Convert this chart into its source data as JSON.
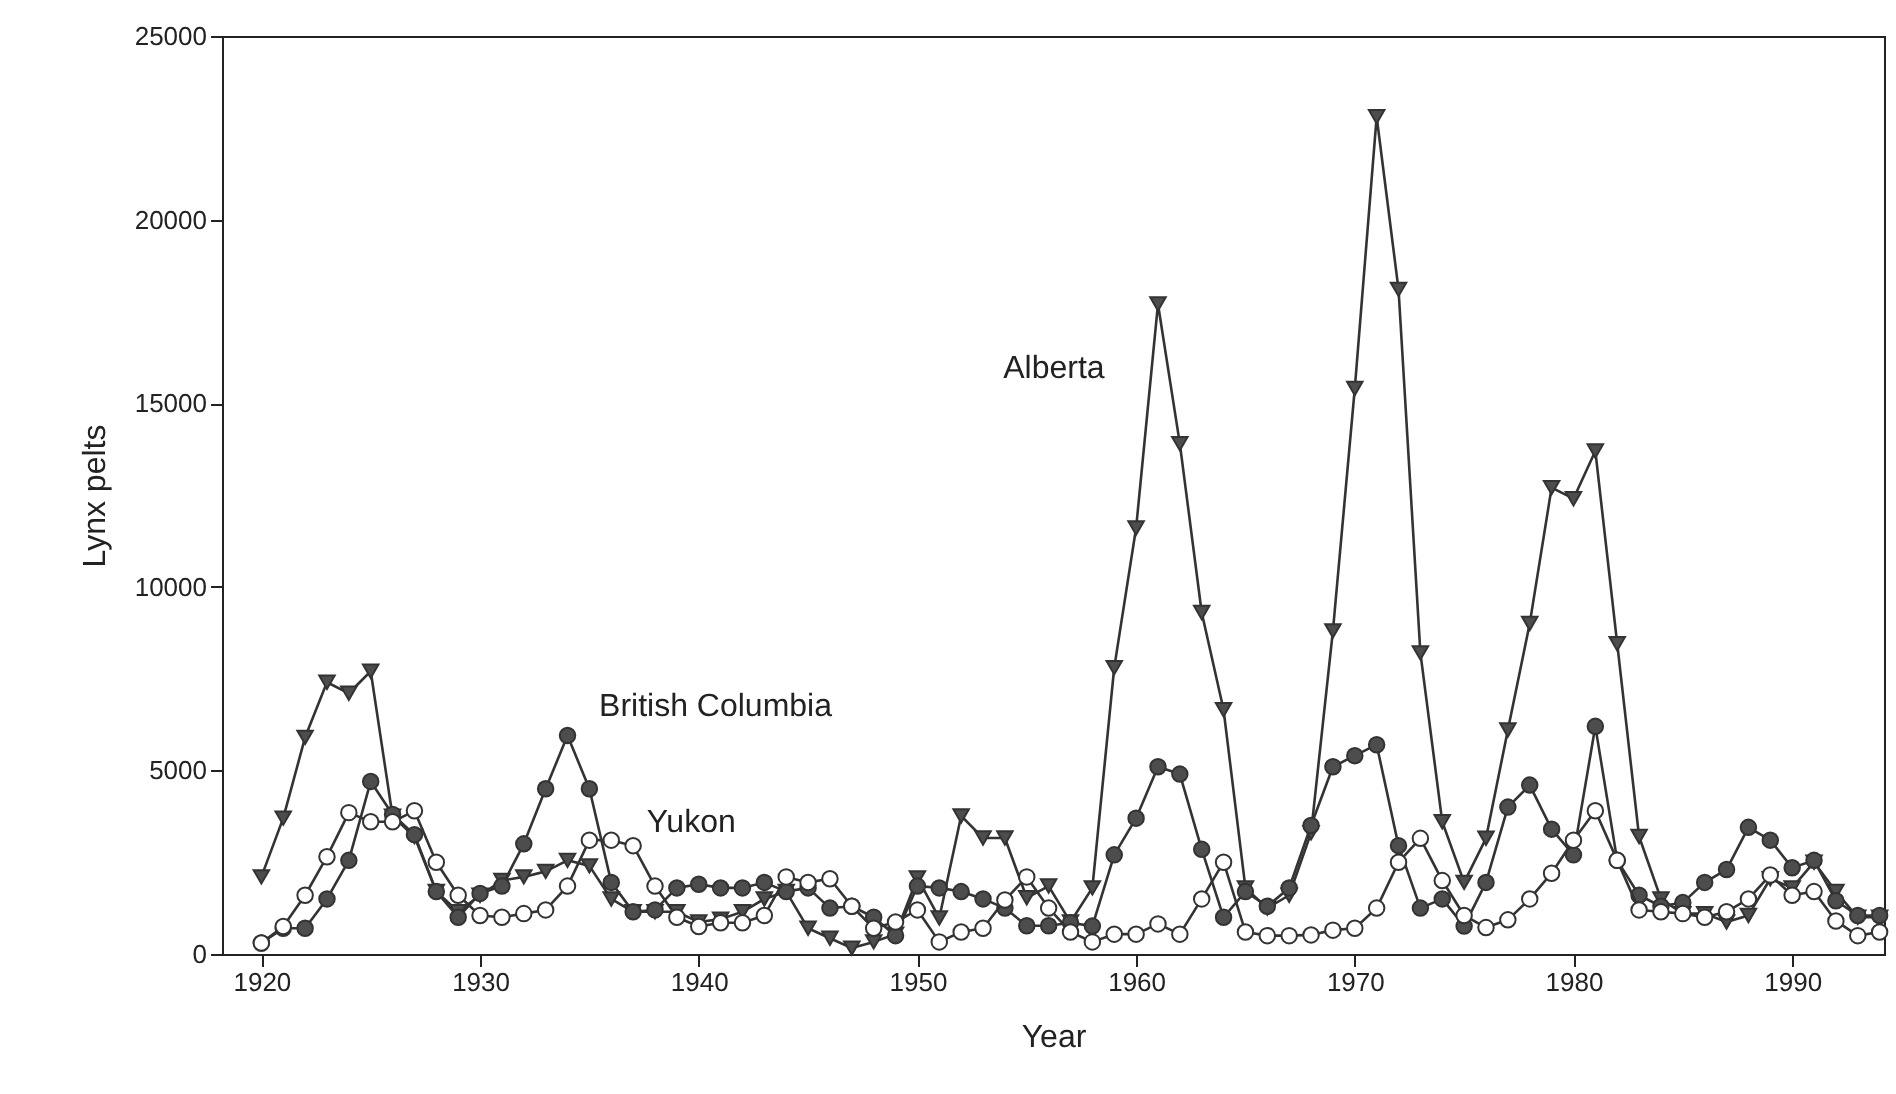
{
  "chart_data": {
    "type": "line",
    "xlabel": "Year",
    "ylabel": "Lynx pelts",
    "x": [
      1920,
      1921,
      1922,
      1923,
      1924,
      1925,
      1926,
      1927,
      1928,
      1929,
      1930,
      1931,
      1932,
      1933,
      1934,
      1935,
      1936,
      1937,
      1938,
      1939,
      1940,
      1941,
      1942,
      1943,
      1944,
      1945,
      1946,
      1947,
      1948,
      1949,
      1950,
      1951,
      1952,
      1953,
      1954,
      1955,
      1956,
      1957,
      1958,
      1959,
      1960,
      1961,
      1962,
      1963,
      1964,
      1965,
      1966,
      1967,
      1968,
      1969,
      1970,
      1971,
      1972,
      1973,
      1974,
      1975,
      1976,
      1977,
      1978,
      1979,
      1980,
      1981,
      1982,
      1983,
      1984,
      1985,
      1986,
      1987,
      1988,
      1989,
      1990,
      1991,
      1992,
      1993,
      1994
    ],
    "series": [
      {
        "name": "Alberta",
        "color": "#4d4d4d",
        "marker": "triangle",
        "values": [
          2100,
          3700,
          5900,
          7400,
          7100,
          7700,
          3750,
          3200,
          1700,
          1150,
          1600,
          2000,
          2100,
          2250,
          2550,
          2400,
          1500,
          1150,
          1150,
          1150,
          870,
          950,
          1150,
          1500,
          1700,
          700,
          430,
          160,
          330,
          540,
          2070,
          980,
          3760,
          3160,
          3160,
          1530,
          1850,
          870,
          1800,
          7800,
          11600,
          17700,
          13900,
          9300,
          6650,
          1800,
          1250,
          1600,
          3300,
          8800,
          15400,
          22800,
          18100,
          8200,
          3600,
          1950,
          3150,
          6100,
          9000,
          12700,
          12400,
          13700,
          8450,
          3200,
          1500,
          1100,
          1100,
          870,
          1050,
          2050,
          1800,
          2500,
          1700,
          1000,
          1000
        ]
      },
      {
        "name": "British Columbia",
        "color": "#4d4d4d",
        "marker": "circle",
        "values": [
          300,
          700,
          700,
          1500,
          2550,
          4700,
          3800,
          3250,
          1700,
          1000,
          1650,
          1850,
          3000,
          4500,
          5950,
          4500,
          1950,
          1150,
          1200,
          1800,
          1900,
          1800,
          1800,
          1950,
          1700,
          1800,
          1250,
          1300,
          1000,
          500,
          1850,
          1800,
          1700,
          1500,
          1250,
          770,
          770,
          850,
          760,
          2700,
          3700,
          5100,
          4900,
          2850,
          1000,
          1700,
          1300,
          1800,
          3500,
          5100,
          5400,
          5700,
          2950,
          1250,
          1500,
          760,
          1950,
          4000,
          4600,
          3400,
          2700,
          6200,
          2550,
          1600,
          1300,
          1400,
          1950,
          2300,
          3450,
          3100,
          2350,
          2550,
          1450,
          1050,
          1050
        ]
      },
      {
        "name": "Yukon",
        "color": "#ffffff",
        "marker": "circle",
        "values": [
          300,
          750,
          1600,
          2650,
          3850,
          3600,
          3600,
          3900,
          2500,
          1600,
          1050,
          1000,
          1100,
          1200,
          1850,
          3100,
          3100,
          2950,
          1850,
          1000,
          750,
          850,
          850,
          1050,
          2100,
          1950,
          2050,
          1300,
          700,
          870,
          1200,
          330,
          600,
          700,
          1470,
          2100,
          1250,
          600,
          330,
          540,
          540,
          820,
          540,
          1500,
          2500,
          600,
          500,
          500,
          520,
          650,
          700,
          1250,
          2500,
          3150,
          2000,
          1050,
          720,
          930,
          1500,
          2200,
          3100,
          3900,
          2550,
          1200,
          1150,
          1100,
          1000,
          1150,
          1500,
          2150,
          1600,
          1700,
          900,
          500,
          600
        ]
      }
    ],
    "xlim": [
      1918.2,
      1994.2
    ],
    "xticks": [
      1920,
      1930,
      1940,
      1950,
      1960,
      1970,
      1980,
      1990
    ],
    "ylim": [
      0,
      25000
    ],
    "yticks": [
      0,
      5000,
      10000,
      15000,
      20000,
      25000
    ],
    "grid": false,
    "line_style": "solid"
  }
}
